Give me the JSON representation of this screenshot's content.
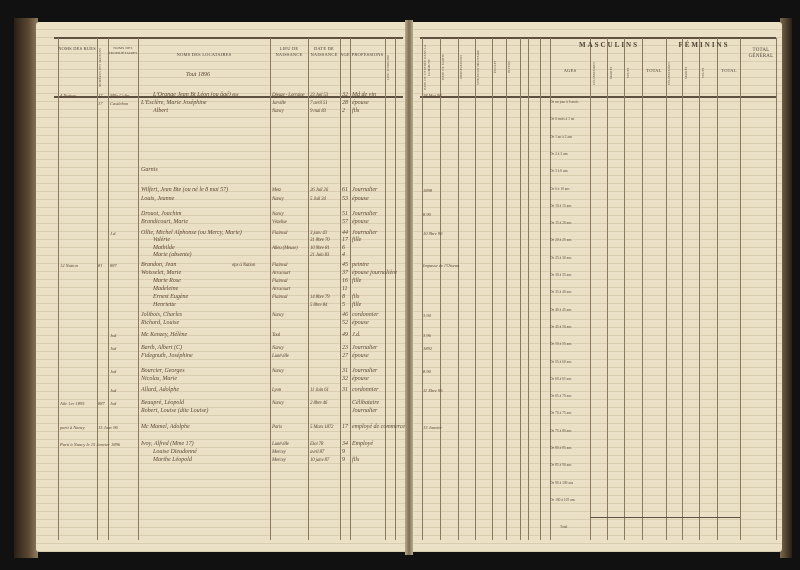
{
  "left_page": {
    "headers": {
      "street": "Noms des rues",
      "house_no": "Numéros des maisons",
      "owners": "Noms des propriétaires",
      "tenants": "Noms des locataires",
      "birthplace": "Lieu de naissance",
      "birthdate": "Date de naissance",
      "age": "Age",
      "profession": "Professions",
      "nationality": "Lieu d'origine"
    },
    "section_note": "Tout 1896",
    "entries": [
      {
        "street": "4 Nation",
        "no": "17",
        "owner": "Mlle Colin",
        "name": "L'Orange Jean Bt Léon (ou âgé)",
        "rel": "epx",
        "place": "Dieuze - Lorraine",
        "date": "23 Juil 53",
        "age": "32",
        "prof": "Md de vin"
      },
      {
        "no": "17",
        "owner": "Castlebon",
        "name": "L'Esclère, Marie Joséphine",
        "place": "Jarville",
        "date": "7 avril 51",
        "age": "28",
        "prof": "épouse"
      },
      {
        "name": "Albert",
        "place": "Nancy",
        "date": "9 mai 83",
        "age": "2",
        "prof": "fils"
      },
      {
        "name": "Garnis"
      },
      {
        "name": "Wilfert, Jean Bte (ou né le 8 mai 57)",
        "place": "Metz",
        "date": "26 Juil 26",
        "age": "61",
        "prof": "Journalier"
      },
      {
        "name": "Louis, Jeanne",
        "place": "Nancy",
        "date": "5 Juil 34",
        "age": "53",
        "prof": "épouse"
      },
      {
        "name": "Drouot, Joachim",
        "place": "Nancy",
        "age": "51",
        "prof": "Journalier"
      },
      {
        "name": "Brandicourt, Marie",
        "place": "Vézelise",
        "age": "57",
        "prof": "épouse"
      },
      {
        "owner": "J.d.",
        "name": "Ollie, Michel Alphonse (ou Mercy, Marie)",
        "place": "Flainval",
        "date": "3 janv 43",
        "age": "44",
        "prof": "Journalier"
      },
      {
        "name": "Valérie",
        "date": "31 8bre 70",
        "age": "17",
        "prof": "fille"
      },
      {
        "name": "Mathilde",
        "place": "Alleu (Meuse)",
        "date": "10 9bre 81",
        "age": "6"
      },
      {
        "name": "Marie (absente)",
        "date": "21 Juin 83",
        "age": "4"
      },
      {
        "street": "12 Nation",
        "no": "81",
        "owner": "887",
        "name": "Brandon, Jean",
        "rel": "epx à Nation",
        "place": "Flainval",
        "age": "45",
        "prof": "peintre"
      },
      {
        "name": "Woisselet, Marie",
        "place": "Arracourt",
        "age": "37",
        "prof": "épouse journalière"
      },
      {
        "name": "Marie Rose",
        "place": "Flainval",
        "age": "16",
        "prof": "fille"
      },
      {
        "name": "Madeleine",
        "place": "Arracourt",
        "age": "11"
      },
      {
        "name": "Ernest Eugène",
        "place": "Flainval",
        "date": "14 8bre 79",
        "age": "8",
        "prof": "fils"
      },
      {
        "name": "Henriette",
        "date": "5 8bre 84",
        "age": "5",
        "prof": "fille"
      },
      {
        "name": "Jolibois, Charles",
        "place": "Nancy",
        "age": "46",
        "prof": "cordonnier"
      },
      {
        "name": "Richard, Louise",
        "age": "52",
        "prof": "épouse"
      },
      {
        "owner": "Jxd",
        "name": "Mc Kenzey, Hélène",
        "place": "Toul",
        "age": "49",
        "prof": "J.d."
      },
      {
        "owner": "Jxd",
        "name": "Barth, Albert (C)",
        "place": "Nancy",
        "age": "23",
        "prof": "Journalier"
      },
      {
        "name": "Fidegnuth, Joséphine",
        "place": "Lunéville",
        "age": "27",
        "prof": "épouse"
      },
      {
        "owner": "Jxd",
        "name": "Bourcier, Georges",
        "place": "Nancy",
        "age": "31",
        "prof": "Journalier"
      },
      {
        "name": "Nicolas, Marie",
        "age": "32",
        "prof": "épouse"
      },
      {
        "owner": "Jxd",
        "name": "Allard, Adolphe",
        "place": "Lyon",
        "date": "11 Juin 61",
        "age": "31",
        "prof": "cordonnier"
      },
      {
        "street": "Aile 1er 1895",
        "no": "887",
        "owner": "Jxd",
        "name": "Beaupré, Léopold",
        "place": "Nancy",
        "date": "2 8bre 46",
        "prof": "Célibataire"
      },
      {
        "name": "Robert, Louise (dite Louise)",
        "prof": "Journalier"
      },
      {
        "street": "parti à Nancy",
        "no": "15 Janv 96",
        "name": "Mc Mamel, Adolphe",
        "place": "Paris",
        "date": "5 Mars 1872",
        "age": "17",
        "prof": "employé de commerce"
      },
      {
        "street": "Parti à Nancy le 15 Janvier 1896",
        "name": "Ivoy, Alfred (Mme 17)",
        "place": "Lunéville",
        "date": "Eloi 78",
        "age": "34",
        "prof": "Employé"
      },
      {
        "name": "Louise Dieudonné",
        "place": "Mercey",
        "date": "avril 87",
        "age": "9"
      },
      {
        "name": "Marthe Léopold",
        "place": "Mercey",
        "date": "10 janv 87",
        "age": "9",
        "prof": "fils"
      }
    ]
  },
  "right_page": {
    "headers": {
      "entry_date": "Date de l'entrée dans la commune",
      "exit_date": "Date de sortie",
      "remarks": "Observations",
      "military": "Situation militaire",
      "ecoles": "Écoles",
      "divers": "Divers",
      "masculins": "Masculins",
      "feminins": "Féminins",
      "ages": "Ages",
      "celib": "Célibataires",
      "maries": "Mariés",
      "veufs": "Veufs",
      "total": "Total",
      "total_general": "Total général"
    },
    "dates": [
      "28 Mai 98",
      "1898",
      "8.90",
      "10 9bre 90",
      "Impasse de l'Oiseau",
      "3.94",
      "3.96",
      "1892",
      "8.90",
      "11 Xbre 96",
      "13 Janvier"
    ],
    "age_ranges": [
      "De un jour à 6 mois",
      "De 6 mois à 1 an",
      "De 1 an à 2 ans",
      "De 2 à 3 ans",
      "De 3 à 6 ans",
      "De 6 à 10 ans",
      "De 10 à 15 ans",
      "De 15 à 20 ans",
      "De 20 à 25 ans",
      "De 25 à 30 ans",
      "De 30 à 35 ans",
      "De 35 à 40 ans",
      "De 40 à 45 ans",
      "De 45 à 50 ans",
      "De 50 à 55 ans",
      "De 55 à 60 ans",
      "De 60 à 65 ans",
      "De 65 à 70 ans",
      "De 70 à 75 ans",
      "De 75 à 80 ans",
      "De 80 à 85 ans",
      "De 85 à 90 ans",
      "De 90 à 100 ans",
      "De 100 à 105 ans"
    ],
    "total_label": "Total"
  }
}
